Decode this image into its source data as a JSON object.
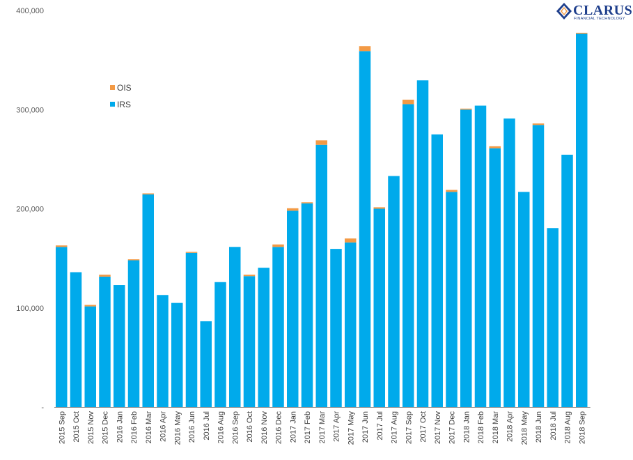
{
  "chart_data": {
    "type": "bar",
    "stacked": true,
    "categories": [
      "2015 Sep",
      "2015 Oct",
      "2015 Nov",
      "2015 Dec",
      "2016 Jan",
      "2016 Feb",
      "2016 Mar",
      "2016 Apr",
      "2016 May",
      "2016 Jun",
      "2016 Jul",
      "2016 Aug",
      "2016 Sep",
      "2016 Oct",
      "2016 Nov",
      "2016 Dec",
      "2017 Jan",
      "2017 Feb",
      "2017 Mar",
      "2017 Apr",
      "2017 May",
      "2017 Jun",
      "2017 Jul",
      "2017 Aug",
      "2017 Sep",
      "2017 Oct",
      "2017 Nov",
      "2017 Dec",
      "2018 Jan",
      "2018 Feb",
      "2018 Mar",
      "2018 Apr",
      "2018 May",
      "2018 Jun",
      "2018 Jul",
      "2018 Aug",
      "2018 Sep"
    ],
    "series": [
      {
        "name": "IRS",
        "color": "#00aaeb",
        "values": [
          161500,
          136000,
          101500,
          131500,
          123000,
          148000,
          214500,
          113000,
          105000,
          155500,
          86500,
          126000,
          161500,
          132000,
          140500,
          161500,
          198000,
          205500,
          264500,
          159500,
          166000,
          359000,
          200000,
          233000,
          305500,
          329500,
          275000,
          217000,
          300000,
          304000,
          261000,
          291000,
          217000,
          284500,
          180500,
          254500,
          376500
        ]
      },
      {
        "name": "OIS",
        "color": "#f39a45",
        "values": [
          1500,
          0,
          1500,
          2000,
          0,
          1000,
          1000,
          0,
          0,
          1000,
          0,
          0,
          0,
          1500,
          0,
          2500,
          2500,
          1000,
          4500,
          0,
          4000,
          5000,
          1500,
          0,
          4500,
          0,
          0,
          2000,
          1000,
          0,
          2000,
          0,
          0,
          1500,
          0,
          0,
          1000
        ]
      }
    ],
    "legend": [
      "OIS",
      "IRS"
    ],
    "legend_position": "top-left",
    "yticks": [
      "-",
      "100,000",
      "200,000",
      "300,000",
      "400,000"
    ],
    "ylim": [
      0,
      400000
    ],
    "grid": false,
    "title": "",
    "xlabel": "",
    "ylabel": ""
  },
  "logo": {
    "name": "CLARUS",
    "tagline": "FINANCIAL TECHNOLOGY"
  }
}
